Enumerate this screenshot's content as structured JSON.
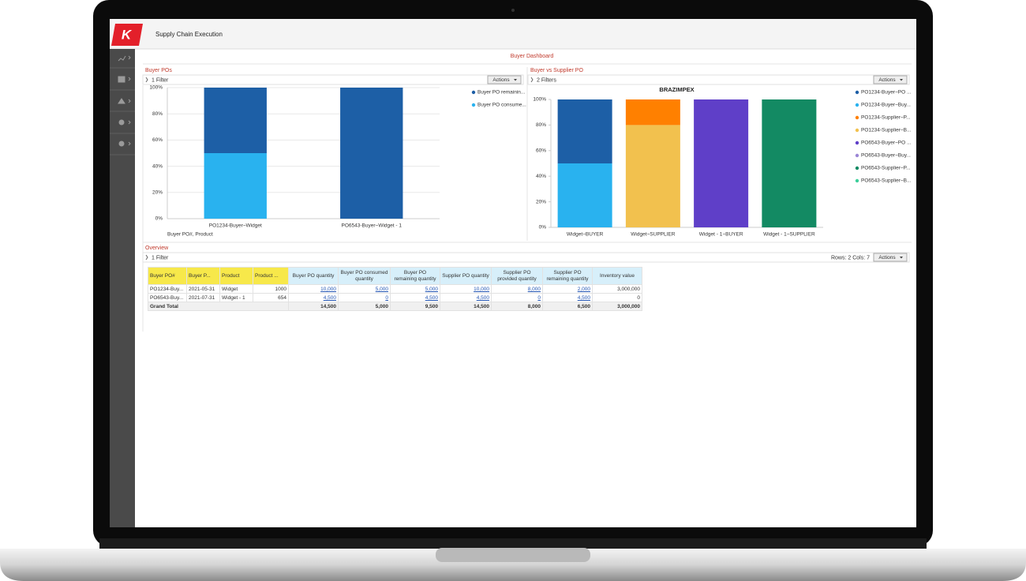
{
  "header": {
    "logo": "K",
    "title": "Supply Chain Execution"
  },
  "dashboard_title": "Buyer Dashboard",
  "panels": [
    {
      "title": "Buyer POs",
      "filter": "1 Filter",
      "actions": "Actions"
    },
    {
      "title": "Buyer vs Supplier PO",
      "filter": "2 Filters",
      "actions": "Actions"
    }
  ],
  "chart_data": [
    {
      "type": "bar",
      "stacked": true,
      "x_label": "Buyer PO#, Product",
      "categories": [
        "PO1234-Buyer~Widget",
        "PO6543-Buyer~Widget - 1"
      ],
      "series": [
        {
          "name": "Buyer PO remainin...",
          "color": "#1d5fa6",
          "values": [
            50,
            100
          ]
        },
        {
          "name": "Buyer PO consume...",
          "color": "#29b2ef",
          "values": [
            50,
            0
          ]
        }
      ],
      "ylim": [
        0,
        100
      ],
      "yticks": [
        {
          "value": 0,
          "label": "0%"
        },
        {
          "value": 20,
          "label": "20%"
        },
        {
          "value": 40,
          "label": "40%"
        },
        {
          "value": 60,
          "label": "60%"
        },
        {
          "value": 80,
          "label": "80%"
        },
        {
          "value": 100,
          "label": "100%"
        }
      ],
      "grid": true,
      "legend": "right"
    },
    {
      "type": "bar",
      "stacked": true,
      "title": "BRAZIMPEX",
      "categories": [
        "Widget~BUYER",
        "Widget~SUPPLIER",
        "Widget - 1~BUYER",
        "Widget - 1~SUPPLIER"
      ],
      "series": [
        {
          "name": "PO1234-Buyer~PO ...",
          "color": "#1d5fa6",
          "values": [
            50,
            0,
            0,
            0
          ]
        },
        {
          "name": "PO1234-Buyer~Buy...",
          "color": "#29b2ef",
          "values": [
            50,
            0,
            0,
            0
          ]
        },
        {
          "name": "PO1234-Supplier~P...",
          "color": "#ff8000",
          "values": [
            0,
            20,
            0,
            0
          ]
        },
        {
          "name": "PO1234-Supplier~B...",
          "color": "#f2c14e",
          "values": [
            0,
            80,
            0,
            0
          ]
        },
        {
          "name": "PO6543-Buyer~PO ...",
          "color": "#5f3fc8",
          "values": [
            0,
            0,
            100,
            0
          ]
        },
        {
          "name": "PO6543-Buyer~Buy...",
          "color": "#9b86d6",
          "values": [
            0,
            0,
            0,
            0
          ]
        },
        {
          "name": "PO6543-Supplier~P...",
          "color": "#138a63",
          "values": [
            0,
            0,
            0,
            100
          ]
        },
        {
          "name": "PO6543-Supplier~B...",
          "color": "#3ccf9a",
          "values": [
            0,
            0,
            0,
            0
          ]
        }
      ],
      "ylim": [
        0,
        100
      ],
      "yticks": [
        {
          "value": 0,
          "label": "0%"
        },
        {
          "value": 20,
          "label": "20%"
        },
        {
          "value": 40,
          "label": "40%"
        },
        {
          "value": 60,
          "label": "60%"
        },
        {
          "value": 80,
          "label": "80%"
        },
        {
          "value": 100,
          "label": "100%"
        }
      ],
      "grid": false,
      "legend": "right"
    }
  ],
  "overview": {
    "title": "Overview",
    "filter": "1 Filter",
    "summary": "Rows: 2 Cols: 7",
    "actions": "Actions"
  },
  "table": {
    "columns": [
      "Buyer PO#",
      "Buyer P...",
      "Product",
      "Product ...",
      "Buyer PO quantity",
      "Buyer PO consumed quantity",
      "Buyer PO remaining quantity",
      "Supplier PO quantity",
      "Supplier PO provided quantity",
      "Supplier PO remaining quantity",
      "Inventory value"
    ],
    "rows": [
      [
        "PO1234-Buy...",
        "2021-05-31",
        "Widget",
        "1000",
        "10,000",
        "5,000",
        "5,000",
        "10,000",
        "8,000",
        "2,000",
        "3,000,000"
      ],
      [
        "PO6543-Buy...",
        "2021-07-31",
        "Widget - 1",
        "654",
        "4,500",
        "0",
        "4,500",
        "4,500",
        "0",
        "4,500",
        "0"
      ]
    ],
    "total": {
      "label": "Grand Total",
      "values": [
        "14,500",
        "5,000",
        "9,500",
        "14,500",
        "8,000",
        "6,500",
        "3,000,000"
      ]
    }
  }
}
